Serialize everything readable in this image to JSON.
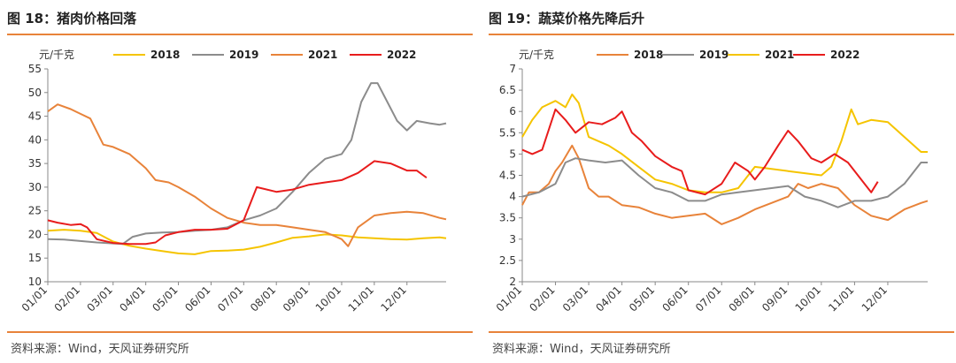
{
  "charts": [
    {
      "title": "图 18：猪肉价格回落",
      "source": "资料来源：Wind，天风证券研究所"
    },
    {
      "title": "图 19：蔬菜价格先降后升",
      "source": "资料来源：Wind，天风证券研究所"
    }
  ],
  "chart_data": [
    {
      "type": "line",
      "ylabel": "元/千克",
      "ylim": [
        10,
        55
      ],
      "yticks": [
        10,
        15,
        20,
        25,
        30,
        35,
        40,
        45,
        50,
        55
      ],
      "xlim": [
        1,
        13.2
      ],
      "xticks": [
        "01/01",
        "02/01",
        "03/01",
        "04/01",
        "05/01",
        "06/01",
        "07/01",
        "08/01",
        "09/01",
        "10/01",
        "11/01",
        "12/01"
      ],
      "grid": false,
      "legend": "top",
      "series": [
        {
          "name": "2018",
          "color": "#f5c400",
          "points": [
            [
              1,
              20.8
            ],
            [
              1.5,
              21
            ],
            [
              2,
              20.8
            ],
            [
              2.5,
              20.3
            ],
            [
              3,
              18.5
            ],
            [
              3.5,
              17.6
            ],
            [
              4,
              17
            ],
            [
              4.5,
              16.5
            ],
            [
              5,
              16
            ],
            [
              5.5,
              15.8
            ],
            [
              6,
              16.5
            ],
            [
              6.5,
              16.6
            ],
            [
              7,
              16.8
            ],
            [
              7.5,
              17.4
            ],
            [
              8,
              18.3
            ],
            [
              8.5,
              19.3
            ],
            [
              9,
              19.6
            ],
            [
              9.5,
              20
            ],
            [
              10,
              19.8
            ],
            [
              10.5,
              19.4
            ],
            [
              11,
              19.2
            ],
            [
              11.5,
              19
            ],
            [
              12,
              18.9
            ],
            [
              12.5,
              19.2
            ],
            [
              13,
              19.4
            ],
            [
              13.2,
              19.2
            ]
          ]
        },
        {
          "name": "2019",
          "color": "#8c8c8c",
          "points": [
            [
              1,
              19
            ],
            [
              1.5,
              18.9
            ],
            [
              2,
              18.6
            ],
            [
              2.5,
              18.3
            ],
            [
              3,
              18.1
            ],
            [
              3.3,
              18
            ],
            [
              3.6,
              19.5
            ],
            [
              4,
              20.2
            ],
            [
              4.5,
              20.4
            ],
            [
              5,
              20.5
            ],
            [
              5.5,
              20.8
            ],
            [
              6,
              21
            ],
            [
              6.5,
              21.5
            ],
            [
              7,
              23
            ],
            [
              7.5,
              24
            ],
            [
              8,
              25.5
            ],
            [
              8.5,
              29
            ],
            [
              9,
              33
            ],
            [
              9.5,
              36
            ],
            [
              10,
              37
            ],
            [
              10.3,
              40
            ],
            [
              10.6,
              48
            ],
            [
              10.9,
              52
            ],
            [
              11.1,
              52
            ],
            [
              11.4,
              48
            ],
            [
              11.7,
              44
            ],
            [
              12,
              42
            ],
            [
              12.3,
              44
            ],
            [
              12.7,
              43.5
            ],
            [
              13,
              43.2
            ],
            [
              13.2,
              43.5
            ]
          ]
        },
        {
          "name": "2021",
          "color": "#e8833a",
          "points": [
            [
              1,
              46
            ],
            [
              1.3,
              47.5
            ],
            [
              1.7,
              46.5
            ],
            [
              2,
              45.5
            ],
            [
              2.3,
              44.5
            ],
            [
              2.7,
              39
            ],
            [
              3,
              38.5
            ],
            [
              3.5,
              37
            ],
            [
              4,
              34
            ],
            [
              4.3,
              31.5
            ],
            [
              4.7,
              31
            ],
            [
              5,
              30
            ],
            [
              5.5,
              28
            ],
            [
              6,
              25.5
            ],
            [
              6.5,
              23.5
            ],
            [
              7,
              22.5
            ],
            [
              7.5,
              22
            ],
            [
              8,
              22
            ],
            [
              8.5,
              21.5
            ],
            [
              9,
              21
            ],
            [
              9.5,
              20.5
            ],
            [
              10,
              19
            ],
            [
              10.2,
              17.5
            ],
            [
              10.5,
              21.5
            ],
            [
              11,
              24
            ],
            [
              11.5,
              24.5
            ],
            [
              12,
              24.8
            ],
            [
              12.5,
              24.5
            ],
            [
              13,
              23.5
            ],
            [
              13.2,
              23.2
            ]
          ]
        },
        {
          "name": "2022",
          "color": "#e81c1c",
          "points": [
            [
              1,
              23
            ],
            [
              1.3,
              22.5
            ],
            [
              1.7,
              22
            ],
            [
              2,
              22.2
            ],
            [
              2.2,
              21.5
            ],
            [
              2.5,
              19
            ],
            [
              3,
              18.2
            ],
            [
              3.5,
              18
            ],
            [
              4,
              18
            ],
            [
              4.3,
              18.3
            ],
            [
              4.6,
              19.8
            ],
            [
              5,
              20.5
            ],
            [
              5.5,
              21
            ],
            [
              6,
              21
            ],
            [
              6.5,
              21.2
            ],
            [
              7,
              23
            ],
            [
              7.4,
              30
            ],
            [
              8,
              29
            ],
            [
              8.5,
              29.5
            ],
            [
              9,
              30.5
            ],
            [
              9.5,
              31
            ],
            [
              10,
              31.5
            ],
            [
              10.5,
              33
            ],
            [
              11,
              35.5
            ],
            [
              11.5,
              35
            ],
            [
              12,
              33.5
            ],
            [
              12.3,
              33.5
            ],
            [
              12.5,
              32.5
            ],
            [
              12.6,
              32
            ]
          ]
        }
      ]
    },
    {
      "type": "line",
      "ylabel": "元/千克",
      "ylim": [
        2,
        7
      ],
      "yticks": [
        2,
        2.5,
        3,
        3.5,
        4,
        4.5,
        5,
        5.5,
        6,
        6.5,
        7
      ],
      "xlim": [
        1,
        13.2
      ],
      "xticks": [
        "01/01",
        "02/01",
        "03/01",
        "04/01",
        "05/01",
        "06/01",
        "07/01",
        "08/01",
        "09/01",
        "10/01",
        "11/01",
        "12/01"
      ],
      "grid": false,
      "legend": "top",
      "series": [
        {
          "name": "2018",
          "color": "#e8833a",
          "points": [
            [
              1,
              3.8
            ],
            [
              1.2,
              4.1
            ],
            [
              1.5,
              4.1
            ],
            [
              1.8,
              4.3
            ],
            [
              2,
              4.6
            ],
            [
              2.2,
              4.8
            ],
            [
              2.5,
              5.2
            ],
            [
              2.7,
              4.9
            ],
            [
              3,
              4.2
            ],
            [
              3.3,
              4
            ],
            [
              3.6,
              4
            ],
            [
              4,
              3.8
            ],
            [
              4.5,
              3.75
            ],
            [
              5,
              3.6
            ],
            [
              5.5,
              3.5
            ],
            [
              6,
              3.55
            ],
            [
              6.5,
              3.6
            ],
            [
              7,
              3.35
            ],
            [
              7.5,
              3.5
            ],
            [
              8,
              3.7
            ],
            [
              8.5,
              3.85
            ],
            [
              9,
              4
            ],
            [
              9.3,
              4.3
            ],
            [
              9.6,
              4.2
            ],
            [
              10,
              4.3
            ],
            [
              10.5,
              4.2
            ],
            [
              11,
              3.8
            ],
            [
              11.5,
              3.55
            ],
            [
              12,
              3.45
            ],
            [
              12.5,
              3.7
            ],
            [
              13,
              3.85
            ],
            [
              13.2,
              3.9
            ]
          ]
        },
        {
          "name": "2019",
          "color": "#8c8c8c",
          "points": [
            [
              1,
              4
            ],
            [
              1.5,
              4.1
            ],
            [
              2,
              4.3
            ],
            [
              2.3,
              4.8
            ],
            [
              2.6,
              4.9
            ],
            [
              3,
              4.85
            ],
            [
              3.5,
              4.8
            ],
            [
              4,
              4.85
            ],
            [
              4.5,
              4.5
            ],
            [
              5,
              4.2
            ],
            [
              5.5,
              4.1
            ],
            [
              6,
              3.9
            ],
            [
              6.5,
              3.9
            ],
            [
              7,
              4.05
            ],
            [
              7.5,
              4.1
            ],
            [
              8,
              4.15
            ],
            [
              8.5,
              4.2
            ],
            [
              9,
              4.25
            ],
            [
              9.5,
              4
            ],
            [
              10,
              3.9
            ],
            [
              10.5,
              3.75
            ],
            [
              11,
              3.9
            ],
            [
              11.5,
              3.9
            ],
            [
              12,
              4
            ],
            [
              12.5,
              4.3
            ],
            [
              13,
              4.8
            ],
            [
              13.2,
              4.8
            ]
          ]
        },
        {
          "name": "2021",
          "color": "#f5c400",
          "points": [
            [
              1,
              5.4
            ],
            [
              1.3,
              5.8
            ],
            [
              1.6,
              6.1
            ],
            [
              2,
              6.25
            ],
            [
              2.3,
              6.1
            ],
            [
              2.5,
              6.4
            ],
            [
              2.7,
              6.2
            ],
            [
              3,
              5.4
            ],
            [
              3.3,
              5.3
            ],
            [
              3.6,
              5.2
            ],
            [
              4,
              5
            ],
            [
              4.5,
              4.7
            ],
            [
              5,
              4.4
            ],
            [
              5.5,
              4.3
            ],
            [
              6,
              4.15
            ],
            [
              6.5,
              4.1
            ],
            [
              7,
              4.1
            ],
            [
              7.5,
              4.2
            ],
            [
              8,
              4.7
            ],
            [
              8.5,
              4.65
            ],
            [
              9,
              4.6
            ],
            [
              9.5,
              4.55
            ],
            [
              10,
              4.5
            ],
            [
              10.3,
              4.7
            ],
            [
              10.6,
              5.3
            ],
            [
              10.9,
              6.05
            ],
            [
              11.1,
              5.7
            ],
            [
              11.5,
              5.8
            ],
            [
              12,
              5.75
            ],
            [
              12.5,
              5.4
            ],
            [
              13,
              5.05
            ],
            [
              13.2,
              5.05
            ]
          ]
        },
        {
          "name": "2022",
          "color": "#e81c1c",
          "points": [
            [
              1,
              5.1
            ],
            [
              1.3,
              5
            ],
            [
              1.6,
              5.1
            ],
            [
              2,
              6.05
            ],
            [
              2.3,
              5.8
            ],
            [
              2.6,
              5.5
            ],
            [
              3,
              5.75
            ],
            [
              3.4,
              5.7
            ],
            [
              3.8,
              5.85
            ],
            [
              4,
              6
            ],
            [
              4.3,
              5.5
            ],
            [
              4.6,
              5.3
            ],
            [
              5,
              4.95
            ],
            [
              5.5,
              4.7
            ],
            [
              5.8,
              4.6
            ],
            [
              6,
              4.15
            ],
            [
              6.5,
              4.05
            ],
            [
              7,
              4.3
            ],
            [
              7.4,
              4.8
            ],
            [
              7.8,
              4.6
            ],
            [
              8,
              4.4
            ],
            [
              8.3,
              4.7
            ],
            [
              8.7,
              5.2
            ],
            [
              9,
              5.55
            ],
            [
              9.3,
              5.3
            ],
            [
              9.7,
              4.9
            ],
            [
              10,
              4.8
            ],
            [
              10.4,
              5
            ],
            [
              10.8,
              4.8
            ],
            [
              11.2,
              4.4
            ],
            [
              11.5,
              4.1
            ],
            [
              11.7,
              4.35
            ]
          ]
        }
      ]
    }
  ]
}
